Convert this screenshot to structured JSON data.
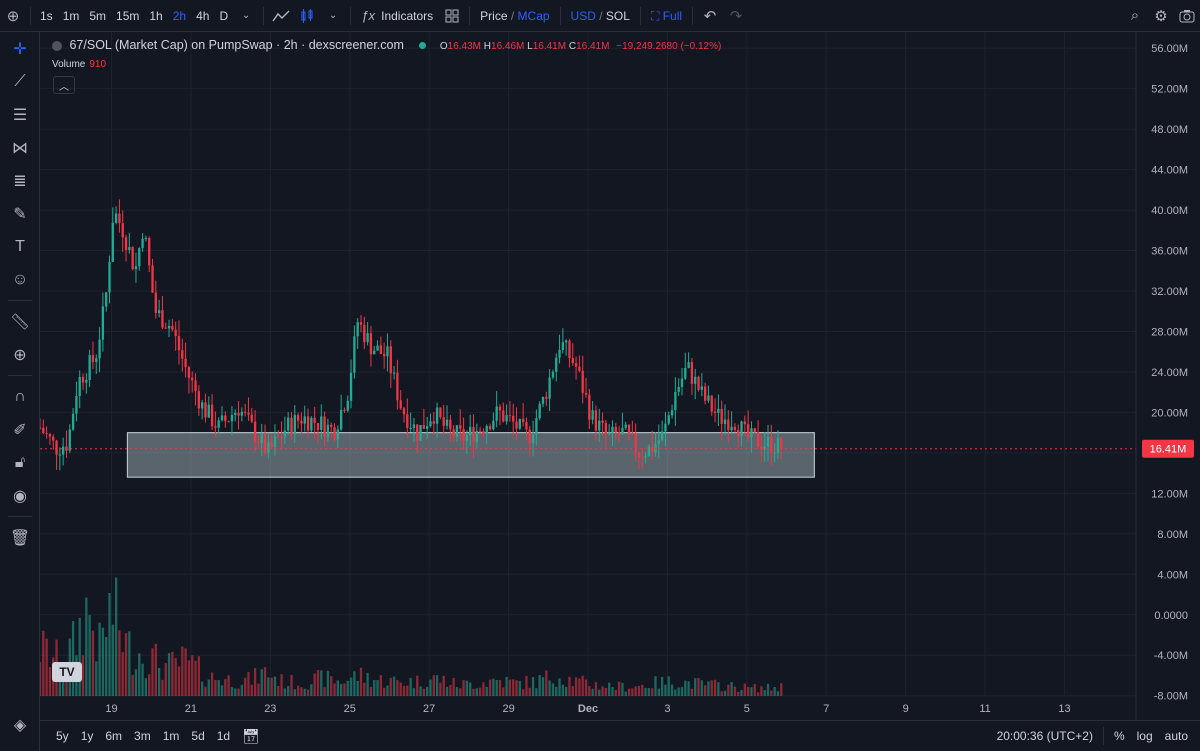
{
  "toolbar": {
    "timeframes": [
      "1s",
      "1m",
      "5m",
      "15m",
      "1h",
      "2h",
      "4h",
      "D"
    ],
    "active_timeframe": "2h",
    "indicators_label": "Indicators",
    "price_label": "Price",
    "mcap_label": "MCap",
    "usd_label": "USD",
    "sol_label": "SOL",
    "full_label": "Full",
    "separator": "/"
  },
  "legend": {
    "symbol": "67/SOL (Market Cap) on PumpSwap · 2h · dexscreener.com",
    "o_label": "O",
    "o_value": "16.43M",
    "h_label": "H",
    "h_value": "16.46M",
    "l_label": "L",
    "l_value": "16.41M",
    "c_label": "C",
    "c_value": "16.41M",
    "change": "−19,249.2680 (−0.12%)",
    "volume_label": "Volume",
    "volume_value": "910"
  },
  "bottombar": {
    "ranges": [
      "5y",
      "1y",
      "6m",
      "3m",
      "1m",
      "5d",
      "1d"
    ],
    "time": "20:00:36 (UTC+2)",
    "percent_label": "%",
    "log_label": "log",
    "auto_label": "auto"
  },
  "colors": {
    "up": "#22ab94",
    "down": "#f23645",
    "bg": "#131722",
    "accent": "#2962ff",
    "zone": "#b2c3c9"
  },
  "chart_data": {
    "type": "candlestick",
    "y_ticks": [
      "56.00M",
      "52.00M",
      "48.00M",
      "44.00M",
      "40.00M",
      "36.00M",
      "32.00M",
      "28.00M",
      "24.00M",
      "20.00M",
      "16.00M",
      "12.00M",
      "8.00M",
      "4.00M",
      "0.0000",
      "-4.00M",
      "-8.00M"
    ],
    "y_tick_values": [
      56,
      52,
      48,
      44,
      40,
      36,
      32,
      28,
      24,
      20,
      16,
      12,
      8,
      4,
      0,
      -4,
      -8
    ],
    "ylim": [
      -10.4,
      57.6
    ],
    "x_ticks": [
      "19",
      "21",
      "23",
      "25",
      "27",
      "29",
      "Dec",
      "3",
      "5",
      "7",
      "9",
      "11",
      "13"
    ],
    "x_tick_values": [
      19,
      21,
      23,
      25,
      27,
      29,
      31,
      33,
      35,
      37,
      39,
      41,
      43
    ],
    "x_range": [
      17.2,
      44.8
    ],
    "current_price_label": "16.41M",
    "current_price": 16.41,
    "support_zone": {
      "x_start": 19.4,
      "x_end": 36.7,
      "y_low": 13.6,
      "y_high": 18.0
    },
    "price_anchors": [
      [
        17.2,
        18.5
      ],
      [
        17.6,
        16.5
      ],
      [
        17.9,
        17.0
      ],
      [
        18.15,
        23.0
      ],
      [
        18.6,
        25.5
      ],
      [
        18.85,
        31.0
      ],
      [
        19.05,
        40.0
      ],
      [
        19.3,
        38.0
      ],
      [
        19.6,
        34.0
      ],
      [
        19.8,
        38.5
      ],
      [
        20.1,
        30.0
      ],
      [
        20.5,
        28.5
      ],
      [
        20.9,
        24.0
      ],
      [
        21.3,
        20.5
      ],
      [
        21.7,
        18.5
      ],
      [
        22.2,
        20.5
      ],
      [
        22.6,
        18.0
      ],
      [
        22.95,
        16.0
      ],
      [
        23.4,
        18.5
      ],
      [
        23.8,
        19.5
      ],
      [
        24.2,
        19.0
      ],
      [
        24.6,
        18.2
      ],
      [
        24.95,
        22.0
      ],
      [
        25.2,
        29.0
      ],
      [
        25.55,
        26.5
      ],
      [
        25.95,
        25.5
      ],
      [
        26.3,
        20.5
      ],
      [
        26.7,
        18.0
      ],
      [
        27.1,
        20.0
      ],
      [
        27.5,
        18.0
      ],
      [
        27.9,
        17.5
      ],
      [
        28.3,
        18.5
      ],
      [
        28.75,
        20.0
      ],
      [
        29.1,
        19.0
      ],
      [
        29.5,
        17.5
      ],
      [
        29.9,
        21.5
      ],
      [
        30.3,
        27.0
      ],
      [
        30.7,
        24.5
      ],
      [
        31.1,
        19.5
      ],
      [
        31.5,
        17.5
      ],
      [
        31.9,
        18.0
      ],
      [
        32.3,
        16.0
      ],
      [
        32.6,
        16.5
      ],
      [
        32.9,
        17.8
      ],
      [
        33.2,
        22.0
      ],
      [
        33.5,
        24.5
      ],
      [
        33.9,
        21.5
      ],
      [
        34.3,
        19.5
      ],
      [
        34.7,
        19.2
      ],
      [
        35.0,
        17.5
      ],
      [
        35.4,
        17.0
      ],
      [
        35.7,
        16.8
      ],
      [
        35.9,
        16.41
      ]
    ],
    "volume_anchors": [
      [
        17.2,
        3.0
      ],
      [
        17.8,
        2.0
      ],
      [
        18.1,
        3.5
      ],
      [
        18.4,
        5.5
      ],
      [
        18.7,
        3.0
      ],
      [
        19.0,
        5.5
      ],
      [
        19.4,
        3.0
      ],
      [
        19.9,
        2.5
      ],
      [
        20.4,
        1.8
      ],
      [
        20.9,
        2.2
      ],
      [
        21.4,
        1.2
      ],
      [
        22.0,
        1.0
      ],
      [
        22.5,
        1.0
      ],
      [
        22.9,
        1.5
      ],
      [
        23.3,
        0.9
      ],
      [
        23.8,
        0.8
      ],
      [
        24.3,
        1.1
      ],
      [
        24.8,
        0.9
      ],
      [
        25.2,
        1.3
      ],
      [
        25.7,
        1.0
      ],
      [
        26.2,
        0.9
      ],
      [
        26.7,
        0.9
      ],
      [
        27.2,
        1.1
      ],
      [
        27.7,
        0.7
      ],
      [
        28.2,
        0.8
      ],
      [
        28.7,
        1.0
      ],
      [
        29.2,
        0.8
      ],
      [
        29.7,
        0.9
      ],
      [
        30.2,
        1.3
      ],
      [
        30.7,
        0.9
      ],
      [
        31.2,
        0.7
      ],
      [
        31.7,
        0.6
      ],
      [
        32.2,
        0.6
      ],
      [
        32.7,
        0.8
      ],
      [
        33.2,
        0.9
      ],
      [
        33.6,
        0.8
      ],
      [
        34.1,
        0.7
      ],
      [
        34.6,
        0.6
      ],
      [
        35.1,
        0.5
      ],
      [
        35.6,
        0.5
      ],
      [
        35.9,
        0.6
      ]
    ]
  }
}
